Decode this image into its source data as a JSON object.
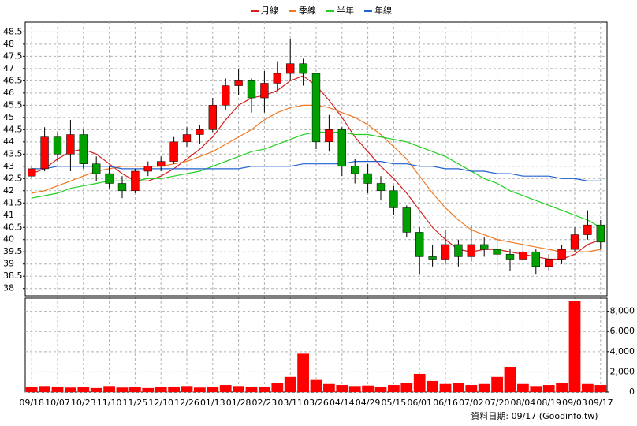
{
  "chart_data": [
    {
      "type": "candlestick",
      "categories": [
        "09/18",
        null,
        "10/07",
        null,
        "10/23",
        null,
        "11/10",
        null,
        "11/25",
        null,
        "12/10",
        null,
        "12/26",
        null,
        "01/13",
        null,
        "01/28",
        null,
        "02/23",
        null,
        "03/11",
        null,
        "03/26",
        null,
        "04/14",
        null,
        "04/29",
        null,
        "05/15",
        null,
        "06/01",
        null,
        "06/16",
        null,
        "07/02",
        null,
        "07/20",
        null,
        "08/04",
        null,
        "08/19",
        null,
        "09/03",
        null,
        "09/17"
      ],
      "open": [
        42.6,
        42.9,
        44.2,
        43.5,
        44.3,
        43.1,
        42.7,
        42.3,
        42.0,
        42.8,
        43.0,
        43.2,
        44.0,
        44.3,
        44.5,
        45.5,
        46.3,
        46.5,
        45.8,
        46.4,
        46.8,
        47.2,
        46.8,
        44.0,
        44.5,
        43.0,
        42.7,
        42.3,
        42.0,
        41.3,
        40.3,
        39.3,
        39.2,
        39.8,
        39.3,
        39.8,
        39.6,
        39.4,
        39.2,
        39.5,
        38.9,
        39.2,
        39.6,
        40.2,
        40.6
      ],
      "high": [
        43.0,
        44.6,
        44.4,
        44.9,
        44.5,
        43.4,
        43.0,
        42.6,
        42.9,
        43.2,
        43.4,
        44.2,
        44.6,
        44.7,
        45.8,
        46.6,
        47.0,
        46.6,
        46.9,
        47.3,
        48.2,
        47.4,
        46.8,
        45.1,
        44.6,
        43.3,
        43.1,
        42.6,
        42.2,
        41.4,
        40.5,
        39.8,
        40.4,
        40.0,
        40.6,
        40.1,
        40.2,
        39.6,
        40.0,
        39.6,
        39.4,
        39.8,
        40.5,
        41.2,
        40.8
      ],
      "low": [
        42.5,
        42.8,
        43.2,
        42.8,
        42.9,
        42.4,
        42.1,
        41.7,
        41.9,
        42.6,
        42.8,
        43.1,
        43.8,
        43.9,
        44.4,
        45.3,
        45.9,
        45.2,
        45.2,
        46.1,
        46.5,
        46.3,
        43.7,
        43.6,
        42.6,
        42.3,
        41.9,
        41.6,
        41.0,
        40.1,
        38.6,
        38.9,
        39.0,
        38.9,
        39.1,
        39.3,
        38.9,
        38.7,
        39.1,
        38.6,
        38.7,
        39.0,
        39.5,
        40.0,
        39.6
      ],
      "close": [
        42.9,
        44.2,
        43.5,
        44.3,
        43.1,
        42.7,
        42.3,
        42.0,
        42.8,
        43.0,
        43.2,
        44.0,
        44.3,
        44.5,
        45.5,
        46.3,
        46.5,
        45.8,
        46.4,
        46.8,
        47.2,
        46.8,
        44.0,
        44.5,
        43.0,
        42.7,
        42.3,
        42.0,
        41.3,
        40.3,
        39.3,
        39.2,
        39.8,
        39.3,
        39.8,
        39.6,
        39.4,
        39.2,
        39.5,
        38.9,
        39.2,
        39.6,
        40.2,
        40.6,
        39.9
      ],
      "up_color": "#ff0000",
      "down_color": "#00a000",
      "series": [
        {
          "name": "月線",
          "color": "#d42020",
          "values": [
            42.7,
            42.9,
            43.3,
            43.6,
            43.7,
            43.5,
            43.1,
            42.7,
            42.4,
            42.4,
            42.6,
            42.9,
            43.3,
            43.7,
            44.2,
            44.9,
            45.5,
            45.8,
            45.9,
            46.1,
            46.5,
            46.7,
            46.3,
            45.7,
            45.0,
            44.2,
            43.6,
            43.0,
            42.5,
            41.9,
            41.2,
            40.5,
            40.0,
            39.6,
            39.5,
            39.6,
            39.6,
            39.5,
            39.4,
            39.3,
            39.2,
            39.2,
            39.4,
            39.8,
            40.0
          ]
        },
        {
          "name": "季線",
          "color": "#f07820",
          "values": [
            41.9,
            42.0,
            42.2,
            42.4,
            42.6,
            42.8,
            42.9,
            43.0,
            43.0,
            43.0,
            43.0,
            43.1,
            43.2,
            43.4,
            43.6,
            43.9,
            44.2,
            44.5,
            44.9,
            45.2,
            45.4,
            45.5,
            45.5,
            45.4,
            45.2,
            45.0,
            44.7,
            44.3,
            43.8,
            43.3,
            42.6,
            41.9,
            41.3,
            40.8,
            40.4,
            40.2,
            40.0,
            39.9,
            39.8,
            39.7,
            39.6,
            39.5,
            39.5,
            39.5,
            39.6
          ]
        },
        {
          "name": "半年",
          "color": "#20d020",
          "values": [
            41.7,
            41.8,
            41.9,
            42.1,
            42.2,
            42.3,
            42.4,
            42.4,
            42.4,
            42.5,
            42.5,
            42.6,
            42.7,
            42.8,
            43.0,
            43.2,
            43.4,
            43.6,
            43.7,
            43.9,
            44.1,
            44.3,
            44.4,
            44.4,
            44.4,
            44.3,
            44.3,
            44.2,
            44.1,
            44.0,
            43.8,
            43.6,
            43.4,
            43.1,
            42.8,
            42.5,
            42.3,
            42.0,
            41.8,
            41.6,
            41.4,
            41.2,
            41.0,
            40.8,
            40.5
          ]
        },
        {
          "name": "年線",
          "color": "#2060d0",
          "values": [
            42.9,
            42.9,
            43.0,
            43.0,
            43.0,
            43.0,
            43.0,
            42.9,
            42.9,
            42.9,
            42.9,
            42.9,
            42.9,
            42.9,
            42.9,
            42.9,
            42.9,
            43.0,
            43.0,
            43.0,
            43.0,
            43.1,
            43.1,
            43.1,
            43.1,
            43.2,
            43.2,
            43.2,
            43.1,
            43.1,
            43.0,
            43.0,
            42.9,
            42.9,
            42.8,
            42.8,
            42.7,
            42.7,
            42.6,
            42.6,
            42.6,
            42.5,
            42.5,
            42.4,
            42.4
          ]
        }
      ],
      "ylim": [
        37.7,
        48.9
      ],
      "yticks": [
        38,
        38.5,
        39,
        39.5,
        40,
        40.5,
        41,
        41.5,
        42,
        42.5,
        43,
        43.5,
        44,
        44.5,
        45,
        45.5,
        46,
        46.5,
        47,
        47.5,
        48,
        48.5
      ],
      "grid": true
    },
    {
      "type": "bar",
      "values": [
        500,
        600,
        550,
        450,
        500,
        400,
        600,
        450,
        500,
        400,
        500,
        550,
        600,
        450,
        550,
        700,
        600,
        500,
        550,
        900,
        1500,
        3800,
        1200,
        800,
        700,
        600,
        650,
        550,
        700,
        900,
        1800,
        1100,
        800,
        900,
        700,
        800,
        1500,
        2500,
        800,
        600,
        700,
        900,
        9000,
        800,
        700
      ],
      "color": "#ff0000",
      "ylim": [
        0,
        9300
      ],
      "yticks": [
        0,
        {
          "value": 2000,
          "label": "2,000"
        },
        {
          "value": 4000,
          "label": "4,000"
        },
        {
          "value": 6000,
          "label": "6,000"
        },
        {
          "value": 8000,
          "label": "8,000"
        }
      ],
      "grid": true,
      "footer": "資料日期: 09/17 (Goodinfo.tw)"
    }
  ]
}
